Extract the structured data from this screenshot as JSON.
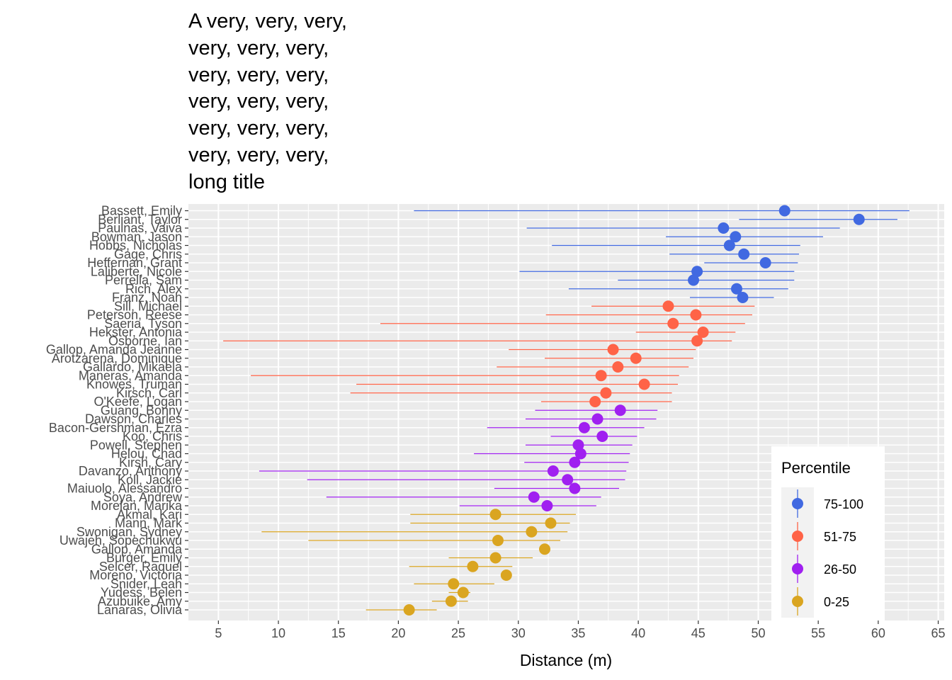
{
  "chart_data": {
    "type": "scatter",
    "title": "A very, very, very,\nvery, very, very,\nvery, very, very,\nvery, very, very,\nvery, very, very,\nvery, very, very,\nlong title",
    "xlabel": "Distance (m)",
    "ylabel": "",
    "xlim": [
      2.5,
      65.5
    ],
    "xticks": [
      5,
      10,
      15,
      20,
      25,
      30,
      35,
      40,
      45,
      50,
      55,
      60,
      65
    ],
    "grid": true,
    "legend_position": "bottom-right",
    "legend_title": "Percentile",
    "series": [
      {
        "name": "75-100",
        "color": "#4169E1"
      },
      {
        "name": "51-75",
        "color": "#FF6347"
      },
      {
        "name": "26-50",
        "color": "#A020F0"
      },
      {
        "name": "0-25",
        "color": "#DAA520"
      }
    ],
    "points": [
      {
        "name": "Bassett, Emily",
        "group": "75-100",
        "x": 52.2,
        "low": 21.3,
        "high": 62.6
      },
      {
        "name": "Berliant, Taylor",
        "group": "75-100",
        "x": 58.4,
        "low": 48.4,
        "high": 61.6
      },
      {
        "name": "Paulnas, Vaiva",
        "group": "75-100",
        "x": 47.1,
        "low": 30.7,
        "high": 56.8
      },
      {
        "name": "Bowman, Jason",
        "group": "75-100",
        "x": 48.1,
        "low": 42.3,
        "high": 55.4
      },
      {
        "name": "Hobbs, Nicholas",
        "group": "75-100",
        "x": 47.6,
        "low": 32.8,
        "high": 53.5
      },
      {
        "name": "Gage, Chris",
        "group": "75-100",
        "x": 48.8,
        "low": 42.6,
        "high": 53.4
      },
      {
        "name": "Heffernan, Grant",
        "group": "75-100",
        "x": 50.6,
        "low": 45.5,
        "high": 53.3
      },
      {
        "name": "Laliberte, Nicole",
        "group": "75-100",
        "x": 44.9,
        "low": 30.1,
        "high": 53.0
      },
      {
        "name": "Perrella, Sam",
        "group": "75-100",
        "x": 44.6,
        "low": 38.3,
        "high": 53.0
      },
      {
        "name": "Rich, Alex",
        "group": "75-100",
        "x": 48.2,
        "low": 34.2,
        "high": 52.5
      },
      {
        "name": "Franz, Noah",
        "group": "75-100",
        "x": 48.7,
        "low": 44.3,
        "high": 51.3
      },
      {
        "name": "Sill, Michael",
        "group": "51-75",
        "x": 42.5,
        "low": 36.1,
        "high": 49.7
      },
      {
        "name": "Peterson, Reese",
        "group": "51-75",
        "x": 44.8,
        "low": 32.3,
        "high": 49.5
      },
      {
        "name": "Saeria, Tyson",
        "group": "51-75",
        "x": 42.9,
        "low": 18.5,
        "high": 48.9
      },
      {
        "name": "Hekster, Antonia",
        "group": "51-75",
        "x": 45.4,
        "low": 39.8,
        "high": 48.1
      },
      {
        "name": "Osborne, Ian",
        "group": "51-75",
        "x": 44.9,
        "low": 5.4,
        "high": 47.8
      },
      {
        "name": "Gallop, Amanda Jeanne",
        "group": "51-75",
        "x": 37.9,
        "low": 29.2,
        "high": 44.8
      },
      {
        "name": "Arotzarena, Dominique",
        "group": "51-75",
        "x": 39.8,
        "low": 32.2,
        "high": 44.6
      },
      {
        "name": "Gallardo, Mikaela",
        "group": "51-75",
        "x": 38.3,
        "low": 28.2,
        "high": 44.2
      },
      {
        "name": "Maneras, Amanda",
        "group": "51-75",
        "x": 36.9,
        "low": 7.7,
        "high": 43.4
      },
      {
        "name": "Knowes, Truman",
        "group": "51-75",
        "x": 40.5,
        "low": 16.5,
        "high": 43.3
      },
      {
        "name": "Kirsch, Carl",
        "group": "51-75",
        "x": 37.3,
        "low": 16.0,
        "high": 42.8
      },
      {
        "name": "O'Keefe, Logan",
        "group": "51-75",
        "x": 36.4,
        "low": 31.9,
        "high": 42.8
      },
      {
        "name": "Guang, Bonny",
        "group": "26-50",
        "x": 38.5,
        "low": 31.4,
        "high": 41.6
      },
      {
        "name": "Dawson, Charles",
        "group": "26-50",
        "x": 36.6,
        "low": 30.6,
        "high": 41.5
      },
      {
        "name": "Bacon-Gershman, Ezra",
        "group": "26-50",
        "x": 35.5,
        "low": 27.4,
        "high": 40.5
      },
      {
        "name": "Koo, Chris",
        "group": "26-50",
        "x": 37.0,
        "low": 32.7,
        "high": 39.9
      },
      {
        "name": "Powell, Stephen",
        "group": "26-50",
        "x": 35.0,
        "low": 30.6,
        "high": 39.5
      },
      {
        "name": "Helou, Chad",
        "group": "26-50",
        "x": 35.2,
        "low": 26.3,
        "high": 39.3
      },
      {
        "name": "Kirsh, Cary",
        "group": "26-50",
        "x": 34.7,
        "low": 30.5,
        "high": 39.2
      },
      {
        "name": "Davanzo, Anthony",
        "group": "26-50",
        "x": 32.9,
        "low": 8.4,
        "high": 39.0
      },
      {
        "name": "Koll, Jackie",
        "group": "26-50",
        "x": 34.1,
        "low": 12.4,
        "high": 38.9
      },
      {
        "name": "Maiuolo, Alessandro",
        "group": "26-50",
        "x": 34.7,
        "low": 28.0,
        "high": 38.4
      },
      {
        "name": "Soya, Andrew",
        "group": "26-50",
        "x": 31.3,
        "low": 14.0,
        "high": 36.9
      },
      {
        "name": "Morelan, Marika",
        "group": "26-50",
        "x": 32.4,
        "low": 25.1,
        "high": 36.5
      },
      {
        "name": "Akmal, Kari",
        "group": "0-25",
        "x": 28.1,
        "low": 21.0,
        "high": 34.8
      },
      {
        "name": "Mann, Mark",
        "group": "0-25",
        "x": 32.7,
        "low": 21.0,
        "high": 34.3
      },
      {
        "name": "Swonigan, Sydney",
        "group": "0-25",
        "x": 31.1,
        "low": 8.6,
        "high": 34.1
      },
      {
        "name": "Uwajeh, Sopechukwu",
        "group": "0-25",
        "x": 28.3,
        "low": 12.5,
        "high": 33.5
      },
      {
        "name": "Gallop, Amanda",
        "group": "0-25",
        "x": 32.2,
        "low": 32.2,
        "high": 32.2
      },
      {
        "name": "Burger, Emily",
        "group": "0-25",
        "x": 28.1,
        "low": 24.2,
        "high": 31.2
      },
      {
        "name": "Selcer, Raquel",
        "group": "0-25",
        "x": 26.2,
        "low": 20.9,
        "high": 29.5
      },
      {
        "name": "Moreno, Victoria",
        "group": "0-25",
        "x": 29.0,
        "low": 29.0,
        "high": 29.0
      },
      {
        "name": "Snider, Leah",
        "group": "0-25",
        "x": 24.6,
        "low": 21.3,
        "high": 28.0
      },
      {
        "name": "Yudess, Belen",
        "group": "0-25",
        "x": 25.4,
        "low": 24.2,
        "high": 26.0
      },
      {
        "name": "Azubuike, Amy",
        "group": "0-25",
        "x": 24.4,
        "low": 22.8,
        "high": 25.8
      },
      {
        "name": "Lanaras, Olivia",
        "group": "0-25",
        "x": 20.9,
        "low": 17.3,
        "high": 23.2
      }
    ]
  }
}
